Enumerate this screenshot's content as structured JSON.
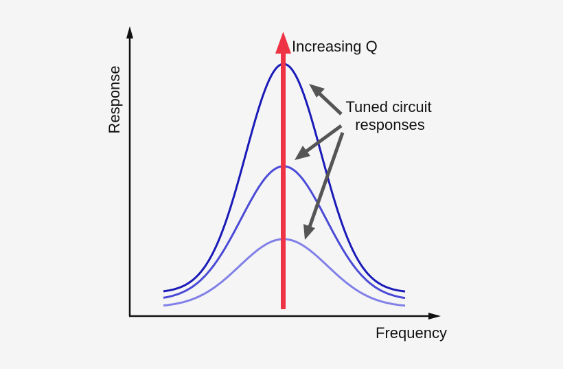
{
  "diagram": {
    "y_axis_label": "Response",
    "x_axis_label": "Frequency",
    "q_arrow_label": "Increasing Q",
    "curves_label_line1": "Tuned circuit",
    "curves_label_line2": "responses"
  },
  "colors": {
    "background": "#f5f5f5",
    "axis": "#111111",
    "q_arrow": "#ee3344",
    "pointer_arrows": "#555555",
    "curve_high_q": "#1a1ab8",
    "curve_mid_q": "#4a4ad6",
    "curve_low_q": "#8080e8"
  }
}
